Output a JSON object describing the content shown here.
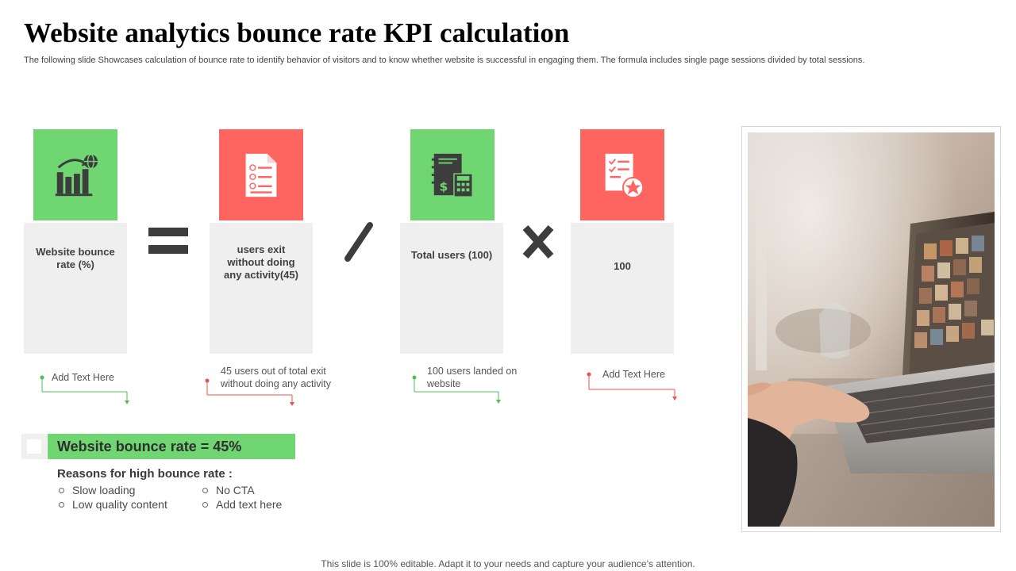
{
  "slide": {
    "title": "Website analytics bounce rate KPI calculation",
    "subtitle": "The following slide Showcases calculation of bounce rate to identify behavior of visitors and to know whether website is successful in engaging them. The formula includes single page sessions divided by total sessions."
  },
  "formula": {
    "items": [
      {
        "label": "Website bounce rate (%)",
        "icon": "bar-chart-globe-icon",
        "note": "Add Text Here",
        "color": "#6fd672"
      },
      {
        "label": "users exit without doing any activity(45)",
        "icon": "document-list-icon",
        "note": "45 users out of total exit without doing any activity",
        "color": "#ff6560"
      },
      {
        "label": "Total users (100)",
        "icon": "ledger-calculator-icon",
        "note": "100 users landed on website",
        "color": "#6fd672"
      },
      {
        "label": "100",
        "icon": "checklist-star-icon",
        "note": "Add Text Here",
        "color": "#ff6560"
      }
    ],
    "operators": [
      "equals",
      "divide",
      "multiply"
    ]
  },
  "result": {
    "headline": "Website bounce rate = 45%",
    "reasons_title": "Reasons for high bounce rate :",
    "reasons": [
      "Slow loading",
      "No CTA",
      "Low quality content",
      "Add text here"
    ]
  },
  "photo": {
    "subject": "laptop-photo"
  },
  "footer": "This slide is 100% editable. Adapt it to your needs and capture your audience’s attention.",
  "colors": {
    "green": "#6fd672",
    "red": "#ff6560",
    "card": "#efefef",
    "dark": "#3d3d3d"
  }
}
